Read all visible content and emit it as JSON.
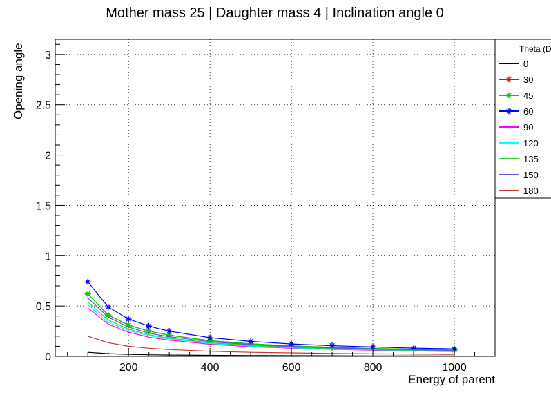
{
  "chart_data": {
    "type": "line",
    "title": "Mother mass 25 | Daughter mass 4 | Inclination angle 0",
    "xlabel": "Energy of parent",
    "ylabel": "Opening angle",
    "xlim": [
      20,
      1100
    ],
    "ylim": [
      0,
      3.15
    ],
    "x_ticks": [
      200,
      400,
      600,
      800,
      1000
    ],
    "y_ticks": [
      0,
      0.5,
      1,
      1.5,
      2,
      2.5,
      3
    ],
    "x_tick_labels": [
      "200",
      "400",
      "600",
      "800",
      "1000"
    ],
    "y_tick_labels": [
      "0",
      "0.5",
      "1",
      "1.5",
      "2",
      "2.5",
      "3"
    ],
    "grid": true,
    "legend_position": "right",
    "legend_title": "Theta (D",
    "x": [
      100,
      150,
      200,
      250,
      300,
      400,
      500,
      600,
      700,
      800,
      900,
      1000
    ],
    "series": [
      {
        "name": "0",
        "color": "#000000",
        "marker": "none",
        "values": [
          0.04,
          0.027,
          0.02,
          0.016,
          0.013,
          0.01,
          0.008,
          0.007,
          0.006,
          0.005,
          0.0045,
          0.004
        ]
      },
      {
        "name": "30",
        "color": "#ff0000",
        "marker": "star",
        "values": [
          0.62,
          0.41,
          0.31,
          0.25,
          0.21,
          0.155,
          0.124,
          0.103,
          0.089,
          0.078,
          0.069,
          0.062
        ]
      },
      {
        "name": "45",
        "color": "#00cc00",
        "marker": "star",
        "values": [
          0.62,
          0.41,
          0.31,
          0.25,
          0.21,
          0.155,
          0.124,
          0.103,
          0.089,
          0.078,
          0.069,
          0.062
        ]
      },
      {
        "name": "60",
        "color": "#0000ff",
        "marker": "star",
        "values": [
          0.74,
          0.49,
          0.37,
          0.3,
          0.25,
          0.185,
          0.148,
          0.123,
          0.106,
          0.093,
          0.082,
          0.074
        ]
      },
      {
        "name": "90",
        "color": "#ff00ff",
        "marker": "none",
        "values": [
          0.48,
          0.32,
          0.24,
          0.19,
          0.16,
          0.12,
          0.096,
          0.08,
          0.069,
          0.06,
          0.053,
          0.048
        ]
      },
      {
        "name": "120",
        "color": "#00ffff",
        "marker": "none",
        "values": [
          0.51,
          0.34,
          0.255,
          0.205,
          0.17,
          0.128,
          0.102,
          0.085,
          0.073,
          0.064,
          0.057,
          0.051
        ]
      },
      {
        "name": "135",
        "color": "#33cc33",
        "marker": "none",
        "values": [
          0.54,
          0.36,
          0.27,
          0.215,
          0.18,
          0.135,
          0.108,
          0.09,
          0.077,
          0.068,
          0.06,
          0.054
        ]
      },
      {
        "name": "150",
        "color": "#5555dd",
        "marker": "none",
        "values": [
          0.58,
          0.39,
          0.29,
          0.23,
          0.195,
          0.145,
          0.116,
          0.097,
          0.083,
          0.073,
          0.064,
          0.058
        ]
      },
      {
        "name": "180",
        "color": "#cc3333",
        "marker": "none",
        "values": [
          0.2,
          0.135,
          0.1,
          0.08,
          0.067,
          0.05,
          0.04,
          0.034,
          0.029,
          0.025,
          0.022,
          0.02
        ]
      }
    ]
  }
}
